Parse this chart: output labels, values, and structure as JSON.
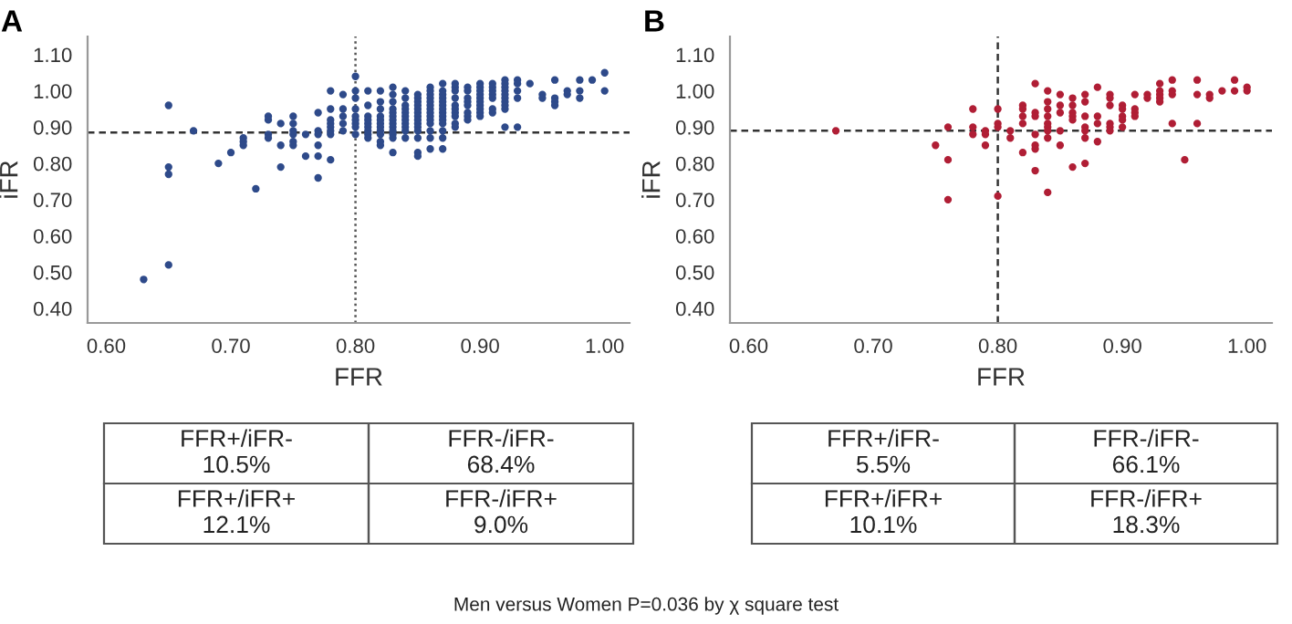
{
  "chart_data": [
    {
      "type": "scatter",
      "title": "A",
      "xlabel": "FFR",
      "ylabel": "iFR",
      "marker": "circle",
      "grid": false,
      "xlim": [
        0.585,
        1.02
      ],
      "ylim": [
        0.36,
        1.15
      ],
      "xticks": [
        {
          "value": 0.6,
          "label": "0.60"
        },
        {
          "value": 0.7,
          "label": "0.70"
        },
        {
          "value": 0.8,
          "label": "0.80"
        },
        {
          "value": 0.9,
          "label": "0.90"
        },
        {
          "value": 1.0,
          "label": "1.00"
        }
      ],
      "yticks": [
        {
          "value": 0.4,
          "label": "0.40"
        },
        {
          "value": 0.5,
          "label": "0.50"
        },
        {
          "value": 0.6,
          "label": "0.60"
        },
        {
          "value": 0.7,
          "label": "0.70"
        },
        {
          "value": 0.8,
          "label": "0.80"
        },
        {
          "value": 0.9,
          "label": "0.90"
        },
        {
          "value": 1.0,
          "label": "1.00"
        },
        {
          "value": 1.1,
          "label": "1.10"
        }
      ],
      "ref_lines": [
        {
          "axis": "x",
          "value": 0.8,
          "line_style": "dotted",
          "color": "#555555"
        },
        {
          "axis": "y",
          "value": 0.885,
          "line_style": "dashed",
          "color": "#333333"
        }
      ],
      "annotations": [
        "FFR+/iFR-\n10.5%",
        "FFR-/iFR-\n68.4%",
        "FFR+/iFR+\n12.1%",
        "FFR-/iFR+\n9.0%"
      ],
      "series": [
        {
          "color": "#2e4a8a",
          "x": [
            0.63,
            0.65,
            0.65,
            0.65,
            0.65,
            0.67,
            0.69,
            0.7,
            0.71,
            0.71,
            0.71,
            0.72,
            0.73,
            0.73,
            0.73,
            0.73,
            0.74,
            0.74,
            0.74,
            0.75,
            0.75,
            0.75,
            0.75,
            0.75,
            0.75,
            0.76,
            0.76,
            0.77,
            0.77,
            0.77,
            0.77,
            0.77,
            0.77,
            0.78,
            0.78,
            0.78,
            0.78,
            0.78,
            0.78,
            0.78,
            0.78,
            0.79,
            0.79,
            0.79,
            0.79,
            0.79,
            0.8,
            0.8,
            0.8,
            0.8,
            0.8,
            0.8,
            0.8,
            0.8,
            0.8,
            0.81,
            0.81,
            0.81,
            0.81,
            0.81,
            0.81,
            0.81,
            0.81,
            0.81,
            0.82,
            0.82,
            0.82,
            0.82,
            0.82,
            0.82,
            0.82,
            0.82,
            0.82,
            0.82,
            0.82,
            0.83,
            0.83,
            0.83,
            0.83,
            0.83,
            0.83,
            0.83,
            0.83,
            0.83,
            0.83,
            0.83,
            0.83,
            0.83,
            0.84,
            0.84,
            0.84,
            0.84,
            0.84,
            0.84,
            0.84,
            0.84,
            0.84,
            0.84,
            0.84,
            0.85,
            0.85,
            0.85,
            0.85,
            0.85,
            0.85,
            0.85,
            0.85,
            0.85,
            0.85,
            0.85,
            0.85,
            0.85,
            0.85,
            0.86,
            0.86,
            0.86,
            0.86,
            0.86,
            0.86,
            0.86,
            0.86,
            0.86,
            0.86,
            0.86,
            0.86,
            0.86,
            0.86,
            0.87,
            0.87,
            0.87,
            0.87,
            0.87,
            0.87,
            0.87,
            0.87,
            0.87,
            0.87,
            0.87,
            0.87,
            0.87,
            0.87,
            0.88,
            0.88,
            0.88,
            0.88,
            0.88,
            0.88,
            0.88,
            0.88,
            0.88,
            0.88,
            0.89,
            0.89,
            0.89,
            0.89,
            0.89,
            0.89,
            0.89,
            0.89,
            0.9,
            0.9,
            0.9,
            0.9,
            0.9,
            0.9,
            0.9,
            0.9,
            0.9,
            0.9,
            0.91,
            0.91,
            0.91,
            0.91,
            0.91,
            0.91,
            0.91,
            0.92,
            0.92,
            0.92,
            0.92,
            0.92,
            0.92,
            0.92,
            0.92,
            0.92,
            0.92,
            0.93,
            0.93,
            0.93,
            0.93,
            0.93,
            0.94,
            0.95,
            0.95,
            0.96,
            0.96,
            0.96,
            0.96,
            0.97,
            0.97,
            0.98,
            0.98,
            0.98,
            0.99,
            1.0,
            1.0
          ],
          "values": [
            0.48,
            0.96,
            0.79,
            0.77,
            0.52,
            0.89,
            0.8,
            0.83,
            0.87,
            0.86,
            0.85,
            0.73,
            0.93,
            0.92,
            0.88,
            0.87,
            0.91,
            0.85,
            0.79,
            0.93,
            0.91,
            0.89,
            0.88,
            0.86,
            0.85,
            0.88,
            0.82,
            0.94,
            0.89,
            0.88,
            0.85,
            0.82,
            0.76,
            1.0,
            0.95,
            0.92,
            0.91,
            0.9,
            0.89,
            0.88,
            0.81,
            0.99,
            0.95,
            0.93,
            0.91,
            0.89,
            1.04,
            1.0,
            0.98,
            0.95,
            0.93,
            0.92,
            0.91,
            0.9,
            0.88,
            1.0,
            0.96,
            0.93,
            0.92,
            0.91,
            0.9,
            0.89,
            0.88,
            0.87,
            1.0,
            0.97,
            0.95,
            0.93,
            0.92,
            0.91,
            0.9,
            0.89,
            0.88,
            0.86,
            0.85,
            1.01,
            0.99,
            0.97,
            0.95,
            0.94,
            0.93,
            0.92,
            0.91,
            0.9,
            0.89,
            0.88,
            0.87,
            0.83,
            1.0,
            0.98,
            0.96,
            0.95,
            0.94,
            0.93,
            0.92,
            0.91,
            0.9,
            0.89,
            0.87,
            0.99,
            0.98,
            0.97,
            0.96,
            0.95,
            0.94,
            0.93,
            0.92,
            0.91,
            0.9,
            0.89,
            0.87,
            0.83,
            0.82,
            1.01,
            1.0,
            0.99,
            0.98,
            0.97,
            0.96,
            0.95,
            0.94,
            0.93,
            0.92,
            0.91,
            0.89,
            0.87,
            0.84,
            1.02,
            1.0,
            0.99,
            0.98,
            0.97,
            0.96,
            0.95,
            0.94,
            0.93,
            0.92,
            0.91,
            0.89,
            0.87,
            0.84,
            1.02,
            1.01,
            1.0,
            0.98,
            0.96,
            0.95,
            0.94,
            0.93,
            0.91,
            0.9,
            1.01,
            1.0,
            0.98,
            0.97,
            0.96,
            0.94,
            0.93,
            0.92,
            1.02,
            1.01,
            1.0,
            0.99,
            0.98,
            0.97,
            0.96,
            0.95,
            0.94,
            0.93,
            1.02,
            1.01,
            1.0,
            0.99,
            0.98,
            0.95,
            0.94,
            1.03,
            1.02,
            1.01,
            1.0,
            0.99,
            0.98,
            0.97,
            0.96,
            0.95,
            0.9,
            1.03,
            1.02,
            1.0,
            0.98,
            0.9,
            1.02,
            0.99,
            0.98,
            1.03,
            0.98,
            0.97,
            0.96,
            1.0,
            0.99,
            1.03,
            1.0,
            0.98,
            1.03,
            1.05,
            1.0
          ]
        }
      ]
    },
    {
      "type": "scatter",
      "title": "B",
      "xlabel": "FFR",
      "ylabel": "iFR",
      "marker": "circle",
      "grid": false,
      "xlim": [
        0.585,
        1.02
      ],
      "ylim": [
        0.36,
        1.15
      ],
      "xticks": [
        {
          "value": 0.6,
          "label": "0.60"
        },
        {
          "value": 0.7,
          "label": "0.70"
        },
        {
          "value": 0.8,
          "label": "0.80"
        },
        {
          "value": 0.9,
          "label": "0.90"
        },
        {
          "value": 1.0,
          "label": "1.00"
        }
      ],
      "yticks": [
        {
          "value": 0.4,
          "label": "0.40"
        },
        {
          "value": 0.5,
          "label": "0.50"
        },
        {
          "value": 0.6,
          "label": "0.60"
        },
        {
          "value": 0.7,
          "label": "0.70"
        },
        {
          "value": 0.8,
          "label": "0.80"
        },
        {
          "value": 0.9,
          "label": "0.90"
        },
        {
          "value": 1.0,
          "label": "1.00"
        },
        {
          "value": 1.1,
          "label": "1.10"
        }
      ],
      "ref_lines": [
        {
          "axis": "x",
          "value": 0.8,
          "line_style": "dashed",
          "color": "#333333"
        },
        {
          "axis": "y",
          "value": 0.89,
          "line_style": "dashed",
          "color": "#333333"
        }
      ],
      "annotations": [
        "FFR+/iFR-\n5.5%",
        "FFR-/iFR-\n66.1%",
        "FFR+/iFR+\n10.1%",
        "FFR-/iFR+\n18.3%",
        "Men versus Women P=0.036 by χ square test"
      ],
      "series": [
        {
          "color": "#b01e35",
          "x": [
            0.67,
            0.75,
            0.76,
            0.76,
            0.76,
            0.78,
            0.78,
            0.78,
            0.79,
            0.79,
            0.79,
            0.8,
            0.8,
            0.8,
            0.8,
            0.81,
            0.81,
            0.82,
            0.82,
            0.82,
            0.82,
            0.82,
            0.83,
            0.83,
            0.83,
            0.83,
            0.83,
            0.83,
            0.83,
            0.84,
            0.84,
            0.84,
            0.84,
            0.84,
            0.84,
            0.84,
            0.84,
            0.84,
            0.85,
            0.85,
            0.85,
            0.85,
            0.85,
            0.86,
            0.86,
            0.86,
            0.86,
            0.86,
            0.86,
            0.87,
            0.87,
            0.87,
            0.87,
            0.87,
            0.87,
            0.87,
            0.88,
            0.88,
            0.88,
            0.88,
            0.89,
            0.89,
            0.89,
            0.89,
            0.89,
            0.89,
            0.9,
            0.9,
            0.9,
            0.9,
            0.9,
            0.91,
            0.91,
            0.91,
            0.91,
            0.92,
            0.92,
            0.93,
            0.93,
            0.93,
            0.93,
            0.93,
            0.94,
            0.94,
            0.94,
            0.94,
            0.95,
            0.96,
            0.96,
            0.96,
            0.97,
            0.97,
            0.98,
            0.99,
            0.99,
            1.0,
            1.0
          ],
          "values": [
            0.89,
            0.85,
            0.9,
            0.81,
            0.7,
            0.95,
            0.9,
            0.88,
            0.89,
            0.88,
            0.85,
            0.95,
            0.91,
            0.9,
            0.71,
            0.89,
            0.87,
            0.96,
            0.95,
            0.93,
            0.91,
            0.83,
            1.02,
            0.94,
            0.93,
            0.88,
            0.85,
            0.84,
            0.78,
            1.0,
            0.97,
            0.95,
            0.93,
            0.91,
            0.9,
            0.89,
            0.87,
            0.72,
            0.99,
            0.96,
            0.94,
            0.89,
            0.85,
            0.98,
            0.96,
            0.94,
            0.93,
            0.92,
            0.79,
            0.99,
            0.97,
            0.93,
            0.9,
            0.89,
            0.87,
            0.8,
            1.01,
            0.93,
            0.91,
            0.86,
            0.99,
            0.98,
            0.96,
            0.91,
            0.9,
            0.89,
            0.96,
            0.95,
            0.93,
            0.92,
            0.9,
            0.99,
            0.95,
            0.94,
            0.93,
            0.99,
            0.98,
            1.02,
            1.0,
            0.99,
            0.98,
            0.97,
            1.03,
            1.0,
            0.99,
            0.91,
            0.81,
            1.03,
            0.99,
            0.91,
            0.99,
            0.98,
            1.0,
            1.03,
            1.0,
            1.01,
            1.0
          ]
        }
      ]
    }
  ]
}
